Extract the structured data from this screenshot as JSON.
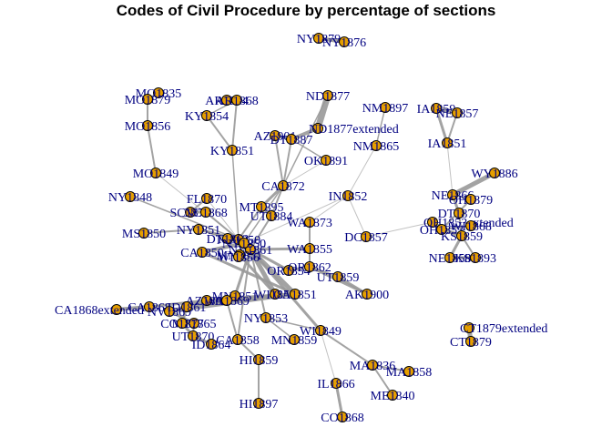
{
  "title": "Codes of Civil Procedure by percentage of sections",
  "colors": {
    "node_fill": "#E69F00",
    "node_stroke": "#000000",
    "label": "#000080",
    "edge": "#9a9a9a",
    "background": "#ffffff"
  },
  "nodes": [
    {
      "id": "NY1879",
      "label": "NY1879"
    },
    {
      "id": "NY1876",
      "label": "NY1876"
    },
    {
      "id": "MO1835",
      "label": "MO1835"
    },
    {
      "id": "MO1879",
      "label": "MO1879"
    },
    {
      "id": "AR1874",
      "label": "AR1874"
    },
    {
      "id": "AR1868",
      "label": "AR1868"
    },
    {
      "id": "KY1854",
      "label": "KY1854"
    },
    {
      "id": "KY1851",
      "label": "KY1851"
    },
    {
      "id": "MO1856",
      "label": "MO1856"
    },
    {
      "id": "MO1849",
      "label": "MO1849"
    },
    {
      "id": "NY1848",
      "label": "NY1848"
    },
    {
      "id": "ND1877",
      "label": "ND1877"
    },
    {
      "id": "ND1877extended",
      "label": "ND1877extended"
    },
    {
      "id": "AZ1901",
      "label": "AZ1901"
    },
    {
      "id": "DT1887",
      "label": "DT1887"
    },
    {
      "id": "NM1897",
      "label": "NM1897"
    },
    {
      "id": "NM1865",
      "label": "NM1865"
    },
    {
      "id": "IA1859",
      "label": "IA1859"
    },
    {
      "id": "NE1857",
      "label": "NE1857"
    },
    {
      "id": "IA1851",
      "label": "IA1851"
    },
    {
      "id": "OK1891",
      "label": "OK1891"
    },
    {
      "id": "WY1886",
      "label": "WY1886"
    },
    {
      "id": "CA1872",
      "label": "CA1872"
    },
    {
      "id": "MT1895",
      "label": "MT1895"
    },
    {
      "id": "UT1884",
      "label": "UT1884"
    },
    {
      "id": "FL1870",
      "label": "FL1870"
    },
    {
      "id": "SC1870",
      "label": "SC1870"
    },
    {
      "id": "NC1868",
      "label": "NC1868"
    },
    {
      "id": "NY1850",
      "label": "NY1850"
    },
    {
      "id": "IN1852",
      "label": "IN1852"
    },
    {
      "id": "NE1866",
      "label": "NE1866"
    },
    {
      "id": "OH1879",
      "label": "OH1879"
    },
    {
      "id": "DT1870",
      "label": "DT1870"
    },
    {
      "id": "OH1853extended",
      "label": "OH1853extended"
    },
    {
      "id": "OH1853",
      "label": "OH1853"
    },
    {
      "id": "WI1868",
      "label": "WI1868"
    },
    {
      "id": "KS1859",
      "label": "KS1859"
    },
    {
      "id": "MS1850",
      "label": "MS1850"
    },
    {
      "id": "NY1851",
      "label": "NY1851"
    },
    {
      "id": "DT1862",
      "label": "DT1862"
    },
    {
      "id": "WA1873",
      "label": "WA1873"
    },
    {
      "id": "DC1857",
      "label": "DC1857"
    },
    {
      "id": "NV1861",
      "label": "NV1861"
    },
    {
      "id": "NY1850b",
      "label": "NY1850"
    },
    {
      "id": "CA1850",
      "label": "CA1850"
    },
    {
      "id": "MN1851",
      "label": "MN1851"
    },
    {
      "id": "WI1856",
      "label": "WI1856"
    },
    {
      "id": "WA1855",
      "label": "WA1855"
    },
    {
      "id": "NE1858",
      "label": "NE1858"
    },
    {
      "id": "KS1893",
      "label": "KS1893"
    },
    {
      "id": "OR1854",
      "label": "OR1854"
    },
    {
      "id": "OR1862",
      "label": "OR1862"
    },
    {
      "id": "UT1859",
      "label": "UT1859"
    },
    {
      "id": "AK1900",
      "label": "AK1900"
    },
    {
      "id": "WI1857",
      "label": "WI1857"
    },
    {
      "id": "CA1851",
      "label": "CA1851"
    },
    {
      "id": "MN1851b",
      "label": "MN1851"
    },
    {
      "id": "CA1868extended",
      "label": "CA1868extended"
    },
    {
      "id": "CA1868",
      "label": "CA1868"
    },
    {
      "id": "AZ1865",
      "label": "AZ1865"
    },
    {
      "id": "WA1869",
      "label": "WA1869"
    },
    {
      "id": "NV1869",
      "label": "NV1869"
    },
    {
      "id": "ID1861",
      "label": "ID1861"
    },
    {
      "id": "MT1865",
      "label": "MT1865"
    },
    {
      "id": "CO1877",
      "label": "CO1877"
    },
    {
      "id": "UT1870",
      "label": "UT1870"
    },
    {
      "id": "ID1864",
      "label": "ID1864"
    },
    {
      "id": "CA1858",
      "label": "CA1858"
    },
    {
      "id": "NY1853",
      "label": "NY1853"
    },
    {
      "id": "MN1859",
      "label": "MN1859"
    },
    {
      "id": "WI1849",
      "label": "WI1849"
    },
    {
      "id": "HI1859",
      "label": "HI1859"
    },
    {
      "id": "HI1897",
      "label": "HI1897"
    },
    {
      "id": "MA1836",
      "label": "MA1836"
    },
    {
      "id": "MA1858",
      "label": "MA1858"
    },
    {
      "id": "IL1866",
      "label": "IL1866"
    },
    {
      "id": "ME1840",
      "label": "ME1840"
    },
    {
      "id": "CO1868",
      "label": "CO1868"
    },
    {
      "id": "CT1879extended",
      "label": "CT1879extended"
    },
    {
      "id": "CT1879",
      "label": "CT1879"
    }
  ],
  "edges": [
    [
      "NY1879",
      "NY1876",
      4
    ],
    [
      "MO1835",
      "MO1879",
      2
    ],
    [
      "MO1879",
      "MO1856",
      2
    ],
    [
      "MO1856",
      "MO1849",
      2
    ],
    [
      "MO1849",
      "NY1850",
      1
    ],
    [
      "AR1874",
      "AR1868",
      4
    ],
    [
      "AR1868",
      "KY1854",
      1.5
    ],
    [
      "AR1868",
      "KY1851",
      2
    ],
    [
      "KY1854",
      "KY1851",
      2
    ],
    [
      "KY1851",
      "NY1850",
      1.5
    ],
    [
      "ND1877",
      "ND1877extended",
      7
    ],
    [
      "ND1877extended",
      "DT1887",
      4
    ],
    [
      "AZ1901",
      "DT1887",
      3
    ],
    [
      "AZ1901",
      "CA1872",
      2
    ],
    [
      "DT1887",
      "CA1872",
      2
    ],
    [
      "ND1877",
      "CA1872",
      1.5
    ],
    [
      "OK1891",
      "DT1887",
      1.5
    ],
    [
      "OK1891",
      "CA1872",
      1
    ],
    [
      "NM1897",
      "NM1865",
      1.5
    ],
    [
      "NM1865",
      "IN1852",
      1
    ],
    [
      "IA1859",
      "NE1857",
      5
    ],
    [
      "IA1859",
      "IA1851",
      3
    ],
    [
      "NE1857",
      "IA1851",
      2
    ],
    [
      "IA1851",
      "NE1866",
      1
    ],
    [
      "WY1886",
      "NE1866",
      5
    ],
    [
      "NE1866",
      "OH1879",
      2
    ],
    [
      "NE1866",
      "DT1870",
      3
    ],
    [
      "OH1879",
      "OH1853",
      2
    ],
    [
      "OH1853extended",
      "OH1853",
      5
    ],
    [
      "OH1853",
      "WI1868",
      2
    ],
    [
      "OH1853",
      "KS1859",
      4
    ],
    [
      "KS1859",
      "NE1858",
      3
    ],
    [
      "NE1858",
      "KS1893",
      3
    ],
    [
      "KS1859",
      "KS1893",
      2
    ],
    [
      "DT1870",
      "KS1859",
      2
    ],
    [
      "DC1857",
      "OH1853extended",
      1
    ],
    [
      "DC1857",
      "IN1852",
      1
    ],
    [
      "IN1852",
      "WA1873",
      1
    ],
    [
      "CA1872",
      "MT1895",
      3
    ],
    [
      "CA1872",
      "UT1884",
      2
    ],
    [
      "MT1895",
      "UT1884",
      2
    ],
    [
      "MT1895",
      "NY1850",
      2
    ],
    [
      "UT1884",
      "NV1861",
      2
    ],
    [
      "FL1870",
      "SC1870",
      2
    ],
    [
      "SC1870",
      "NC1868",
      3
    ],
    [
      "NC1868",
      "NY1850",
      2
    ],
    [
      "NY1848",
      "NY1850",
      1.5
    ],
    [
      "MS1850",
      "NY1851",
      2
    ],
    [
      "NY1851",
      "NY1850",
      3
    ],
    [
      "NY1851",
      "DT1862",
      2
    ],
    [
      "DT1862",
      "NY1850b",
      4
    ],
    [
      "NY1850",
      "NY1850b",
      3
    ],
    [
      "NY1850b",
      "CA1850",
      4
    ],
    [
      "NY1850b",
      "WI1856",
      3
    ],
    [
      "NY1850b",
      "NV1861",
      4
    ],
    [
      "CA1850",
      "CA1851",
      3
    ],
    [
      "WI1856",
      "NV1861",
      3
    ],
    [
      "NV1861",
      "WA1855",
      3
    ],
    [
      "WA1873",
      "WA1855",
      2
    ],
    [
      "WA1855",
      "OR1862",
      2
    ],
    [
      "OR1854",
      "OR1862",
      3
    ],
    [
      "OR1862",
      "UT1859",
      2
    ],
    [
      "UT1859",
      "AK1900",
      3
    ],
    [
      "OR1862",
      "AK1900",
      3
    ],
    [
      "NV1861",
      "OR1854",
      3
    ],
    [
      "NV1861",
      "WI1857",
      5
    ],
    [
      "NV1861",
      "MN1851",
      4
    ],
    [
      "WI1857",
      "MN1851",
      3
    ],
    [
      "NV1861",
      "CA1851",
      5
    ],
    [
      "CA1851",
      "AZ1865",
      4
    ],
    [
      "CA1851",
      "WA1869",
      4
    ],
    [
      "CA1851",
      "NV1869",
      4
    ],
    [
      "CA1868extended",
      "CA1868",
      4
    ],
    [
      "CA1868",
      "AZ1865",
      3
    ],
    [
      "AZ1865",
      "NV1869",
      3
    ],
    [
      "WA1869",
      "ID1861",
      3
    ],
    [
      "NV1869",
      "MT1865",
      3
    ],
    [
      "ID1861",
      "CO1877",
      3
    ],
    [
      "MT1865",
      "CO1877",
      3
    ],
    [
      "CO1877",
      "UT1870",
      3
    ],
    [
      "UT1870",
      "ID1864",
      3
    ],
    [
      "MT1865",
      "UT1870",
      2
    ],
    [
      "WA1869",
      "CA1858",
      2
    ],
    [
      "CA1858",
      "HI1859",
      2
    ],
    [
      "HI1859",
      "HI1897",
      2
    ],
    [
      "NV1861",
      "NY1853",
      2
    ],
    [
      "NY1853",
      "MN1859",
      1.5
    ],
    [
      "NY1853",
      "WI1849",
      1.5
    ],
    [
      "NV1861",
      "WI1849",
      3
    ],
    [
      "WI1849",
      "MA1836",
      2
    ],
    [
      "MA1836",
      "MA1858",
      2
    ],
    [
      "MA1836",
      "ME1840",
      2
    ],
    [
      "WI1849",
      "IL1866",
      1
    ],
    [
      "IL1866",
      "CO1868",
      3
    ],
    [
      "CT1879extended",
      "CT1879",
      5
    ],
    [
      "NY1850",
      "FL1870",
      1
    ],
    [
      "IN1852",
      "NY1850b",
      1
    ],
    [
      "CA1872",
      "NY1850b",
      1.5
    ],
    [
      "MN1851b",
      "NV1861",
      3
    ],
    [
      "CA1858",
      "NV1861",
      2
    ]
  ]
}
